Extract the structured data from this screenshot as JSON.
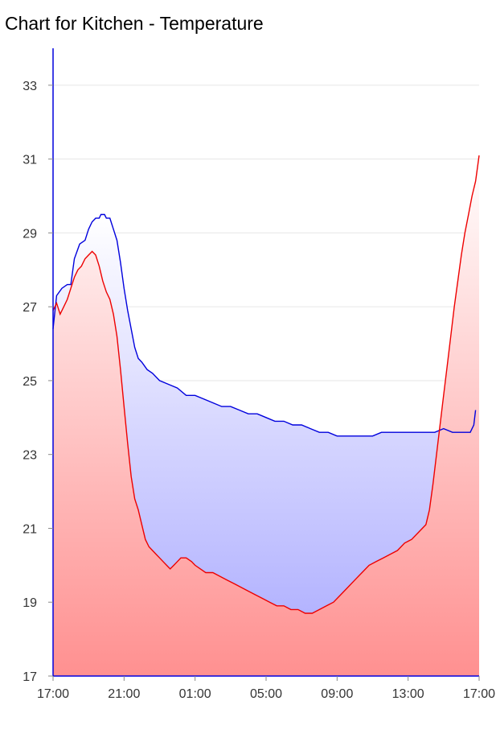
{
  "title": "Chart for Kitchen - Temperature",
  "chart_data": {
    "type": "area",
    "title": "Chart for Kitchen - Temperature",
    "xlabel": "",
    "ylabel": "",
    "ylim": [
      17,
      34
    ],
    "yticks": [
      17,
      19,
      21,
      23,
      25,
      27,
      29,
      31,
      33
    ],
    "x_ticks": [
      "17:00",
      "21:00",
      "01:00",
      "05:00",
      "09:00",
      "13:00",
      "17:00"
    ],
    "grid": true,
    "legend": "none",
    "colors": {
      "axis": "#0000dd",
      "series_a": "#0000dd",
      "series_b": "#ee0000",
      "fill_a_top": "#ffffff",
      "fill_a_bottom": "#a8a8ff",
      "fill_b_top": "#ffffff",
      "fill_b_bottom": "#ff9090",
      "grid": "#e6e6e6"
    },
    "series": [
      {
        "values": [
          [
            0.0,
            26.4
          ],
          [
            0.2,
            27.3
          ],
          [
            0.5,
            27.5
          ],
          [
            0.8,
            27.6
          ],
          [
            1.0,
            27.6
          ],
          [
            1.2,
            28.3
          ],
          [
            1.5,
            28.7
          ],
          [
            1.8,
            28.8
          ],
          [
            2.0,
            29.1
          ],
          [
            2.2,
            29.3
          ],
          [
            2.4,
            29.4
          ],
          [
            2.6,
            29.4
          ],
          [
            2.7,
            29.5
          ],
          [
            2.9,
            29.5
          ],
          [
            3.0,
            29.4
          ],
          [
            3.2,
            29.4
          ],
          [
            3.4,
            29.1
          ],
          [
            3.6,
            28.8
          ],
          [
            3.8,
            28.2
          ],
          [
            4.0,
            27.5
          ],
          [
            4.2,
            26.9
          ],
          [
            4.4,
            26.4
          ],
          [
            4.6,
            25.9
          ],
          [
            4.8,
            25.6
          ],
          [
            5.0,
            25.5
          ],
          [
            5.3,
            25.3
          ],
          [
            5.6,
            25.2
          ],
          [
            6.0,
            25.0
          ],
          [
            6.5,
            24.9
          ],
          [
            7.0,
            24.8
          ],
          [
            7.5,
            24.6
          ],
          [
            8.0,
            24.6
          ],
          [
            8.5,
            24.5
          ],
          [
            9.0,
            24.4
          ],
          [
            9.5,
            24.3
          ],
          [
            10.0,
            24.3
          ],
          [
            10.5,
            24.2
          ],
          [
            11.0,
            24.1
          ],
          [
            11.5,
            24.1
          ],
          [
            12.0,
            24.0
          ],
          [
            12.5,
            23.9
          ],
          [
            13.0,
            23.9
          ],
          [
            13.5,
            23.8
          ],
          [
            14.0,
            23.8
          ],
          [
            14.5,
            23.7
          ],
          [
            15.0,
            23.6
          ],
          [
            15.5,
            23.6
          ],
          [
            16.0,
            23.5
          ],
          [
            16.5,
            23.5
          ],
          [
            17.0,
            23.5
          ],
          [
            17.5,
            23.5
          ],
          [
            18.0,
            23.5
          ],
          [
            18.5,
            23.6
          ],
          [
            19.0,
            23.6
          ],
          [
            19.5,
            23.6
          ],
          [
            20.0,
            23.6
          ],
          [
            20.5,
            23.6
          ],
          [
            21.0,
            23.6
          ],
          [
            21.5,
            23.6
          ],
          [
            22.0,
            23.7
          ],
          [
            22.5,
            23.6
          ],
          [
            23.0,
            23.6
          ],
          [
            23.5,
            23.6
          ],
          [
            23.7,
            23.8
          ],
          [
            23.8,
            24.2
          ]
        ]
      },
      {
        "values": [
          [
            0.0,
            26.9
          ],
          [
            0.2,
            27.1
          ],
          [
            0.4,
            26.8
          ],
          [
            0.6,
            27.0
          ],
          [
            0.8,
            27.2
          ],
          [
            1.0,
            27.5
          ],
          [
            1.2,
            27.8
          ],
          [
            1.4,
            28.0
          ],
          [
            1.6,
            28.1
          ],
          [
            1.8,
            28.3
          ],
          [
            2.0,
            28.4
          ],
          [
            2.2,
            28.5
          ],
          [
            2.4,
            28.4
          ],
          [
            2.6,
            28.1
          ],
          [
            2.8,
            27.7
          ],
          [
            3.0,
            27.4
          ],
          [
            3.2,
            27.2
          ],
          [
            3.4,
            26.8
          ],
          [
            3.6,
            26.2
          ],
          [
            3.8,
            25.3
          ],
          [
            4.0,
            24.3
          ],
          [
            4.2,
            23.3
          ],
          [
            4.4,
            22.4
          ],
          [
            4.6,
            21.8
          ],
          [
            4.8,
            21.5
          ],
          [
            5.0,
            21.1
          ],
          [
            5.2,
            20.7
          ],
          [
            5.4,
            20.5
          ],
          [
            5.6,
            20.4
          ],
          [
            5.8,
            20.3
          ],
          [
            6.0,
            20.2
          ],
          [
            6.2,
            20.1
          ],
          [
            6.4,
            20.0
          ],
          [
            6.6,
            19.9
          ],
          [
            6.8,
            20.0
          ],
          [
            7.0,
            20.1
          ],
          [
            7.2,
            20.2
          ],
          [
            7.5,
            20.2
          ],
          [
            7.8,
            20.1
          ],
          [
            8.0,
            20.0
          ],
          [
            8.3,
            19.9
          ],
          [
            8.6,
            19.8
          ],
          [
            9.0,
            19.8
          ],
          [
            9.4,
            19.7
          ],
          [
            9.8,
            19.6
          ],
          [
            10.2,
            19.5
          ],
          [
            10.6,
            19.4
          ],
          [
            11.0,
            19.3
          ],
          [
            11.4,
            19.2
          ],
          [
            11.8,
            19.1
          ],
          [
            12.2,
            19.0
          ],
          [
            12.6,
            18.9
          ],
          [
            13.0,
            18.9
          ],
          [
            13.4,
            18.8
          ],
          [
            13.8,
            18.8
          ],
          [
            14.2,
            18.7
          ],
          [
            14.6,
            18.7
          ],
          [
            15.0,
            18.8
          ],
          [
            15.4,
            18.9
          ],
          [
            15.8,
            19.0
          ],
          [
            16.2,
            19.2
          ],
          [
            16.6,
            19.4
          ],
          [
            17.0,
            19.6
          ],
          [
            17.4,
            19.8
          ],
          [
            17.8,
            20.0
          ],
          [
            18.2,
            20.1
          ],
          [
            18.6,
            20.2
          ],
          [
            19.0,
            20.3
          ],
          [
            19.4,
            20.4
          ],
          [
            19.8,
            20.6
          ],
          [
            20.2,
            20.7
          ],
          [
            20.6,
            20.9
          ],
          [
            21.0,
            21.1
          ],
          [
            21.2,
            21.5
          ],
          [
            21.4,
            22.2
          ],
          [
            21.6,
            23.0
          ],
          [
            21.8,
            23.8
          ],
          [
            22.0,
            24.6
          ],
          [
            22.2,
            25.4
          ],
          [
            22.4,
            26.2
          ],
          [
            22.6,
            27.0
          ],
          [
            22.8,
            27.7
          ],
          [
            23.0,
            28.4
          ],
          [
            23.2,
            29.0
          ],
          [
            23.4,
            29.5
          ],
          [
            23.6,
            30.0
          ],
          [
            23.8,
            30.4
          ],
          [
            24.0,
            31.1
          ]
        ]
      }
    ]
  }
}
